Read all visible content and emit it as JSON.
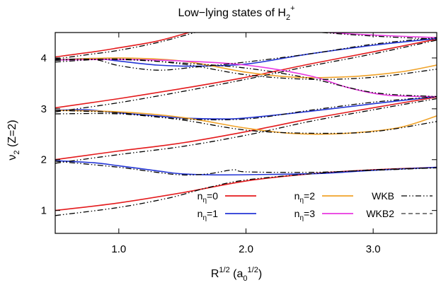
{
  "chart_data": {
    "type": "line",
    "title": {
      "main": "Low−lying states of H",
      "sub": "2",
      "sup": "+"
    },
    "xlabel": {
      "base": "R",
      "sup": "1/2",
      "paren_open": " (a",
      "sub": "0",
      "sup2": "1/2",
      "paren_close": ")"
    },
    "ylabel": {
      "base": "ν",
      "sub": "2",
      "rest": " (Z=2)"
    },
    "xlim": [
      0.5,
      3.5
    ],
    "ylim": [
      0.55,
      4.5
    ],
    "xticks": [
      1.0,
      2.0,
      3.0
    ],
    "xtick_labels": [
      "1.0",
      "2.0",
      "3.0"
    ],
    "yticks": [
      1,
      2,
      3,
      4
    ],
    "ytick_labels": [
      "1",
      "2",
      "3",
      "4"
    ],
    "grid": false,
    "legend_position": "bottom-right",
    "colors": {
      "n0": "#e41a1c",
      "n1": "#2436d6",
      "n2": "#f0a32a",
      "n3": "#e838e0",
      "wkb": "#000000",
      "wkb2": "#000000"
    },
    "legend": [
      {
        "key": "n0",
        "pre": "n",
        "sub": "η",
        "post": "=0"
      },
      {
        "key": "n1",
        "pre": "n",
        "sub": "η",
        "post": "=1"
      },
      {
        "key": "n2",
        "pre": "n",
        "sub": "η",
        "post": "=2"
      },
      {
        "key": "n3",
        "pre": "n",
        "sub": "η",
        "post": "=3"
      },
      {
        "key": "wkb",
        "pre": "WKB",
        "sub": "",
        "post": ""
      },
      {
        "key": "wkb2",
        "pre": "WKB2",
        "sub": "",
        "post": ""
      }
    ],
    "series": [
      {
        "key": "n0",
        "points": [
          [
            0.5,
            1.0
          ],
          [
            1.0,
            1.15
          ],
          [
            1.5,
            1.35
          ],
          [
            2.0,
            1.58
          ],
          [
            2.5,
            1.72
          ],
          [
            3.0,
            1.8
          ],
          [
            3.5,
            1.85
          ]
        ]
      },
      {
        "key": "n1",
        "points": [
          [
            0.5,
            1.98
          ],
          [
            0.8,
            1.94
          ],
          [
            1.0,
            1.88
          ],
          [
            1.3,
            1.78
          ],
          [
            1.5,
            1.72
          ],
          [
            1.8,
            1.7
          ],
          [
            2.2,
            1.71
          ],
          [
            2.6,
            1.73
          ],
          [
            3.0,
            1.79
          ],
          [
            3.5,
            1.85
          ]
        ]
      },
      {
        "key": "n0",
        "points": [
          [
            0.5,
            2.0
          ],
          [
            1.0,
            2.17
          ],
          [
            1.5,
            2.33
          ],
          [
            2.0,
            2.55
          ],
          [
            2.5,
            2.8
          ],
          [
            3.0,
            3.02
          ],
          [
            3.5,
            3.23
          ]
        ]
      },
      {
        "key": "n1",
        "points": [
          [
            0.5,
            2.97
          ],
          [
            0.75,
            2.98
          ],
          [
            1.0,
            2.92
          ],
          [
            1.3,
            2.86
          ],
          [
            1.5,
            2.82
          ],
          [
            1.8,
            2.8
          ],
          [
            2.0,
            2.82
          ],
          [
            2.5,
            2.95
          ],
          [
            3.0,
            3.1
          ],
          [
            3.5,
            3.24
          ]
        ]
      },
      {
        "key": "n2",
        "points": [
          [
            0.5,
            2.97
          ],
          [
            1.0,
            2.94
          ],
          [
            1.5,
            2.83
          ],
          [
            2.0,
            2.62
          ],
          [
            2.4,
            2.51
          ],
          [
            2.8,
            2.52
          ],
          [
            3.2,
            2.63
          ],
          [
            3.5,
            2.86
          ]
        ]
      },
      {
        "key": "n0",
        "points": [
          [
            0.5,
            3.02
          ],
          [
            1.0,
            3.2
          ],
          [
            1.5,
            3.4
          ],
          [
            2.0,
            3.62
          ],
          [
            2.5,
            3.88
          ],
          [
            3.0,
            4.12
          ],
          [
            3.5,
            4.37
          ]
        ]
      },
      {
        "key": "n1",
        "points": [
          [
            0.5,
            3.96
          ],
          [
            0.8,
            3.99
          ],
          [
            1.0,
            3.94
          ],
          [
            1.3,
            3.86
          ],
          [
            1.6,
            3.84
          ],
          [
            2.0,
            3.88
          ],
          [
            2.5,
            4.08
          ],
          [
            3.0,
            4.25
          ],
          [
            3.5,
            4.38
          ]
        ]
      },
      {
        "key": "n2",
        "points": [
          [
            0.5,
            3.96
          ],
          [
            1.0,
            4.0
          ],
          [
            1.5,
            3.94
          ],
          [
            2.0,
            3.72
          ],
          [
            2.4,
            3.62
          ],
          [
            2.8,
            3.63
          ],
          [
            3.2,
            3.72
          ],
          [
            3.5,
            3.86
          ]
        ]
      },
      {
        "key": "n3",
        "points": [
          [
            0.5,
            3.96
          ],
          [
            1.0,
            3.97
          ],
          [
            1.5,
            3.94
          ],
          [
            2.0,
            3.86
          ],
          [
            2.5,
            3.65
          ],
          [
            2.8,
            3.42
          ],
          [
            3.1,
            3.27
          ],
          [
            3.5,
            3.24
          ]
        ]
      },
      {
        "key": "n0",
        "points": [
          [
            0.5,
            4.02
          ],
          [
            0.8,
            4.12
          ],
          [
            1.0,
            4.2
          ],
          [
            1.3,
            4.33
          ],
          [
            1.55,
            4.5
          ]
        ]
      },
      {
        "key": "n3",
        "points": [
          [
            2.65,
            4.5
          ],
          [
            3.0,
            4.45
          ],
          [
            3.5,
            4.4
          ]
        ]
      },
      {
        "key": "wkb",
        "points": [
          [
            0.5,
            0.9
          ],
          [
            1.0,
            1.06
          ],
          [
            1.4,
            1.25
          ],
          [
            1.7,
            1.45
          ],
          [
            2.0,
            1.6
          ],
          [
            2.5,
            1.72
          ],
          [
            3.0,
            1.8
          ],
          [
            3.5,
            1.84
          ]
        ]
      },
      {
        "key": "wkb",
        "points": [
          [
            0.5,
            1.97
          ],
          [
            1.0,
            1.85
          ],
          [
            1.3,
            1.75
          ],
          [
            1.5,
            1.7
          ],
          [
            1.7,
            1.72
          ],
          [
            1.9,
            1.8
          ],
          [
            2.0,
            1.76
          ],
          [
            2.5,
            1.75
          ],
          [
            3.0,
            1.79
          ],
          [
            3.5,
            1.84
          ]
        ]
      },
      {
        "key": "wkb",
        "points": [
          [
            0.5,
            1.93
          ],
          [
            1.0,
            2.1
          ],
          [
            1.5,
            2.26
          ],
          [
            2.0,
            2.48
          ],
          [
            2.5,
            2.75
          ],
          [
            3.0,
            2.98
          ],
          [
            3.5,
            3.2
          ]
        ]
      },
      {
        "key": "wkb",
        "points": [
          [
            0.5,
            2.9
          ],
          [
            1.0,
            2.9
          ],
          [
            1.5,
            2.8
          ],
          [
            2.0,
            2.8
          ],
          [
            2.5,
            2.97
          ],
          [
            3.0,
            3.13
          ],
          [
            3.5,
            3.24
          ]
        ]
      },
      {
        "key": "wkb",
        "points": [
          [
            0.5,
            2.97
          ],
          [
            1.0,
            2.92
          ],
          [
            1.5,
            2.78
          ],
          [
            2.0,
            2.58
          ],
          [
            2.5,
            2.52
          ],
          [
            3.0,
            2.55
          ],
          [
            3.5,
            2.75
          ]
        ]
      },
      {
        "key": "wkb",
        "points": [
          [
            0.5,
            2.94
          ],
          [
            1.0,
            3.12
          ],
          [
            1.5,
            3.34
          ],
          [
            2.0,
            3.58
          ],
          [
            2.5,
            3.84
          ],
          [
            3.0,
            4.08
          ],
          [
            3.5,
            4.35
          ]
        ]
      },
      {
        "key": "wkb",
        "points": [
          [
            0.5,
            3.95
          ],
          [
            0.8,
            3.97
          ],
          [
            1.0,
            3.85
          ],
          [
            1.3,
            3.76
          ],
          [
            1.6,
            3.82
          ],
          [
            2.0,
            3.92
          ],
          [
            2.5,
            4.08
          ],
          [
            3.0,
            4.27
          ],
          [
            3.5,
            4.4
          ]
        ]
      },
      {
        "key": "wkb",
        "points": [
          [
            0.5,
            3.92
          ],
          [
            1.0,
            3.98
          ],
          [
            1.5,
            3.88
          ],
          [
            2.0,
            3.67
          ],
          [
            2.5,
            3.58
          ],
          [
            3.0,
            3.62
          ],
          [
            3.5,
            3.78
          ]
        ]
      },
      {
        "key": "wkb",
        "points": [
          [
            0.5,
            3.97
          ],
          [
            1.0,
            3.97
          ],
          [
            1.5,
            3.9
          ],
          [
            2.0,
            3.8
          ],
          [
            2.5,
            3.6
          ],
          [
            3.0,
            3.32
          ],
          [
            3.5,
            3.24
          ]
        ]
      },
      {
        "key": "wkb",
        "points": [
          [
            0.5,
            3.98
          ],
          [
            0.8,
            4.08
          ],
          [
            1.0,
            4.15
          ],
          [
            1.3,
            4.3
          ],
          [
            1.6,
            4.5
          ]
        ]
      },
      {
        "key": "wkb",
        "points": [
          [
            2.6,
            4.5
          ],
          [
            3.0,
            4.43
          ],
          [
            3.5,
            4.37
          ]
        ]
      }
    ]
  }
}
